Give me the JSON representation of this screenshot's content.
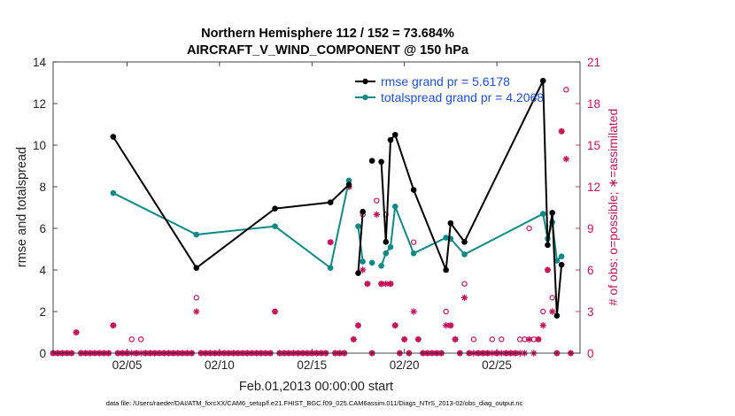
{
  "chart_data": {
    "type": "line",
    "title": "Northern Hemisphere 112 / 152 = 73.684%",
    "subtitle": "AIRCRAFT_V_WIND_COMPONENT @ 150 hPa",
    "xlabel": "Feb.01,2013 00:00:00 start",
    "ylabel_left": "rmse and totalspread",
    "ylabel_right": "# of obs: o=possible; ∗=assimilated",
    "footnote": "data file: /Users/raeder/DAI/ATM_forcXX/CAM6_setup/f.e21.FHIST_BGC.f09_025.CAM6assim.011/Diags_NTrS_2013-02/obs_diag_output.nc",
    "x_tick_labels": [
      "02/05",
      "02/10",
      "02/15",
      "02/20",
      "02/25"
    ],
    "x_tick_values": [
      5,
      10,
      15,
      20,
      25
    ],
    "xlim": [
      1,
      29.5
    ],
    "ylim_left": [
      0,
      14
    ],
    "ylim_right": [
      0,
      21
    ],
    "y_ticks_left": [
      "0",
      "2",
      "4",
      "6",
      "8",
      "10",
      "12",
      "14"
    ],
    "y_ticks_right": [
      "0",
      "3",
      "6",
      "9",
      "12",
      "15",
      "18",
      "21"
    ],
    "colors": {
      "rmse": "#000000",
      "spread": "#0f8a86",
      "obs": "#c5115a",
      "legend_text": "#1a4fd6"
    },
    "series": [
      {
        "name": "rmse grand pr = 5.6178",
        "values": [
          [
            4.25,
            10.4
          ],
          [
            8.75,
            4.1
          ],
          [
            13.0,
            6.95
          ],
          [
            16.0,
            7.25
          ],
          [
            17.0,
            8.1
          ],
          [
            17.25,
            null
          ],
          [
            17.5,
            3.85
          ],
          [
            17.75,
            6.8
          ],
          [
            18.0,
            null
          ],
          [
            18.25,
            9.25
          ],
          [
            18.5,
            null
          ],
          [
            18.75,
            9.2
          ],
          [
            19.0,
            5.35
          ],
          [
            19.25,
            10.25
          ],
          [
            19.5,
            10.5
          ],
          [
            20.5,
            7.85
          ],
          [
            22.25,
            4.0
          ],
          [
            22.5,
            6.25
          ],
          [
            23.25,
            5.35
          ],
          [
            27.5,
            13.1
          ],
          [
            27.75,
            5.2
          ],
          [
            28.0,
            6.75
          ],
          [
            28.25,
            1.8
          ],
          [
            28.5,
            4.25
          ]
        ]
      },
      {
        "name": "totalspread grand pr = 4.2068",
        "values": [
          [
            4.25,
            7.7
          ],
          [
            8.75,
            5.7
          ],
          [
            13.0,
            6.1
          ],
          [
            16.0,
            4.1
          ],
          [
            17.0,
            8.3
          ],
          [
            17.25,
            null
          ],
          [
            17.5,
            6.1
          ],
          [
            17.75,
            4.4
          ],
          [
            18.0,
            null
          ],
          [
            18.25,
            4.35
          ],
          [
            18.5,
            null
          ],
          [
            18.75,
            4.2
          ],
          [
            19.0,
            4.8
          ],
          [
            19.25,
            5.1
          ],
          [
            19.5,
            7.05
          ],
          [
            20.5,
            4.8
          ],
          [
            22.25,
            5.55
          ],
          [
            22.5,
            5.5
          ],
          [
            23.25,
            4.75
          ],
          [
            27.5,
            6.7
          ],
          [
            27.75,
            5.5
          ],
          [
            28.0,
            6.3
          ],
          [
            28.25,
            4.45
          ],
          [
            28.5,
            4.65
          ]
        ]
      }
    ],
    "obs_possible": [
      [
        1.0,
        0
      ],
      [
        1.25,
        0
      ],
      [
        1.5,
        0
      ],
      [
        1.75,
        0
      ],
      [
        2.0,
        0
      ],
      [
        2.25,
        1.5
      ],
      [
        2.5,
        0
      ],
      [
        2.75,
        0
      ],
      [
        3.0,
        0
      ],
      [
        3.25,
        0
      ],
      [
        3.5,
        0
      ],
      [
        3.75,
        0
      ],
      [
        4.0,
        0
      ],
      [
        4.25,
        2
      ],
      [
        4.5,
        0
      ],
      [
        4.75,
        0
      ],
      [
        5.0,
        0
      ],
      [
        5.25,
        1
      ],
      [
        5.5,
        0
      ],
      [
        5.75,
        1
      ],
      [
        6.0,
        0
      ],
      [
        6.25,
        0
      ],
      [
        6.5,
        0
      ],
      [
        6.75,
        0
      ],
      [
        7.0,
        0
      ],
      [
        7.25,
        0
      ],
      [
        7.5,
        0
      ],
      [
        7.75,
        0
      ],
      [
        8.0,
        0
      ],
      [
        8.25,
        0
      ],
      [
        8.5,
        0
      ],
      [
        8.75,
        4
      ],
      [
        9.0,
        0
      ],
      [
        9.25,
        0
      ],
      [
        9.5,
        0
      ],
      [
        9.75,
        0
      ],
      [
        10.0,
        0
      ],
      [
        10.25,
        0
      ],
      [
        10.5,
        0
      ],
      [
        10.75,
        0
      ],
      [
        11.0,
        0
      ],
      [
        11.25,
        0
      ],
      [
        11.5,
        0
      ],
      [
        11.75,
        0
      ],
      [
        12.0,
        0
      ],
      [
        12.25,
        0
      ],
      [
        12.5,
        0
      ],
      [
        12.75,
        0
      ],
      [
        13.0,
        3
      ],
      [
        13.25,
        0
      ],
      [
        13.5,
        0
      ],
      [
        13.75,
        0
      ],
      [
        14.0,
        0
      ],
      [
        14.25,
        0
      ],
      [
        14.5,
        0
      ],
      [
        14.75,
        0
      ],
      [
        15.0,
        0
      ],
      [
        15.25,
        0
      ],
      [
        15.5,
        0
      ],
      [
        15.75,
        0
      ],
      [
        16.0,
        8
      ],
      [
        16.25,
        0
      ],
      [
        16.5,
        0
      ],
      [
        16.75,
        0
      ],
      [
        17.0,
        12
      ],
      [
        17.25,
        1
      ],
      [
        17.5,
        2
      ],
      [
        17.75,
        10
      ],
      [
        18.0,
        5
      ],
      [
        18.25,
        0
      ],
      [
        18.5,
        11
      ],
      [
        18.75,
        5
      ],
      [
        19.0,
        10
      ],
      [
        19.25,
        5
      ],
      [
        19.5,
        2
      ],
      [
        19.75,
        0
      ],
      [
        20.0,
        1
      ],
      [
        20.25,
        0
      ],
      [
        20.5,
        8
      ],
      [
        20.75,
        1
      ],
      [
        21.0,
        0
      ],
      [
        21.25,
        0
      ],
      [
        21.5,
        0
      ],
      [
        21.75,
        0
      ],
      [
        22.0,
        0
      ],
      [
        22.25,
        3
      ],
      [
        22.5,
        2
      ],
      [
        22.75,
        1
      ],
      [
        23.0,
        0
      ],
      [
        23.25,
        5
      ],
      [
        23.5,
        0
      ],
      [
        23.75,
        1
      ],
      [
        24.0,
        0
      ],
      [
        24.25,
        0
      ],
      [
        24.5,
        0
      ],
      [
        24.75,
        1
      ],
      [
        25.0,
        0
      ],
      [
        25.25,
        1
      ],
      [
        25.5,
        0
      ],
      [
        25.75,
        0
      ],
      [
        26.0,
        0
      ],
      [
        26.25,
        1
      ],
      [
        26.5,
        1
      ],
      [
        26.75,
        9
      ],
      [
        27.0,
        1
      ],
      [
        27.25,
        1
      ],
      [
        27.5,
        3
      ],
      [
        27.75,
        6
      ],
      [
        28.0,
        4
      ],
      [
        28.25,
        0
      ],
      [
        28.5,
        16
      ],
      [
        28.75,
        19
      ],
      [
        29.0,
        0
      ]
    ],
    "obs_assimilated": [
      [
        1.0,
        0
      ],
      [
        1.25,
        0
      ],
      [
        1.5,
        0
      ],
      [
        1.75,
        0
      ],
      [
        2.0,
        0
      ],
      [
        2.25,
        1.5
      ],
      [
        2.5,
        0
      ],
      [
        2.75,
        0
      ],
      [
        3.0,
        0
      ],
      [
        3.25,
        0
      ],
      [
        3.5,
        0
      ],
      [
        3.75,
        0
      ],
      [
        4.0,
        0
      ],
      [
        4.25,
        2
      ],
      [
        4.5,
        0
      ],
      [
        4.75,
        0
      ],
      [
        5.0,
        0
      ],
      [
        5.25,
        0
      ],
      [
        5.5,
        0
      ],
      [
        5.75,
        0
      ],
      [
        6.0,
        0
      ],
      [
        6.25,
        0
      ],
      [
        6.5,
        0
      ],
      [
        6.75,
        0
      ],
      [
        7.0,
        0
      ],
      [
        7.25,
        0
      ],
      [
        7.5,
        0
      ],
      [
        7.75,
        0
      ],
      [
        8.0,
        0
      ],
      [
        8.25,
        0
      ],
      [
        8.5,
        0
      ],
      [
        8.75,
        3
      ],
      [
        9.0,
        0
      ],
      [
        9.25,
        0
      ],
      [
        9.5,
        0
      ],
      [
        9.75,
        0
      ],
      [
        10.0,
        0
      ],
      [
        10.25,
        0
      ],
      [
        10.5,
        0
      ],
      [
        10.75,
        0
      ],
      [
        11.0,
        0
      ],
      [
        11.25,
        0
      ],
      [
        11.5,
        0
      ],
      [
        11.75,
        0
      ],
      [
        12.0,
        0
      ],
      [
        12.25,
        0
      ],
      [
        12.5,
        0
      ],
      [
        12.75,
        0
      ],
      [
        13.0,
        3
      ],
      [
        13.25,
        0
      ],
      [
        13.5,
        0
      ],
      [
        13.75,
        0
      ],
      [
        14.0,
        0
      ],
      [
        14.25,
        0
      ],
      [
        14.5,
        0
      ],
      [
        14.75,
        0
      ],
      [
        15.0,
        0
      ],
      [
        15.25,
        0
      ],
      [
        15.5,
        0
      ],
      [
        15.75,
        0
      ],
      [
        16.0,
        8
      ],
      [
        16.25,
        0
      ],
      [
        16.5,
        0
      ],
      [
        16.75,
        0
      ],
      [
        17.0,
        12
      ],
      [
        17.25,
        1
      ],
      [
        17.5,
        2
      ],
      [
        17.75,
        6
      ],
      [
        18.0,
        5
      ],
      [
        18.25,
        0
      ],
      [
        18.5,
        10
      ],
      [
        18.75,
        5
      ],
      [
        19.0,
        5
      ],
      [
        19.25,
        5
      ],
      [
        19.5,
        2
      ],
      [
        19.75,
        0
      ],
      [
        20.0,
        1
      ],
      [
        20.25,
        0
      ],
      [
        20.5,
        3
      ],
      [
        20.75,
        1
      ],
      [
        21.0,
        0
      ],
      [
        21.25,
        0
      ],
      [
        21.5,
        0
      ],
      [
        21.75,
        0
      ],
      [
        22.0,
        0
      ],
      [
        22.25,
        2
      ],
      [
        22.5,
        2
      ],
      [
        22.75,
        1
      ],
      [
        23.0,
        0
      ],
      [
        23.25,
        4
      ],
      [
        23.5,
        0
      ],
      [
        23.75,
        0
      ],
      [
        24.0,
        0
      ],
      [
        24.25,
        0
      ],
      [
        24.5,
        0
      ],
      [
        24.75,
        0
      ],
      [
        25.0,
        0
      ],
      [
        25.25,
        0
      ],
      [
        25.5,
        0
      ],
      [
        25.75,
        0
      ],
      [
        26.0,
        0
      ],
      [
        26.25,
        0
      ],
      [
        26.5,
        0
      ],
      [
        26.75,
        1
      ],
      [
        27.0,
        0
      ],
      [
        27.25,
        1
      ],
      [
        27.5,
        2
      ],
      [
        27.75,
        6
      ],
      [
        28.0,
        3
      ],
      [
        28.25,
        0
      ],
      [
        28.5,
        16
      ],
      [
        28.75,
        14
      ],
      [
        29.0,
        0
      ]
    ]
  }
}
